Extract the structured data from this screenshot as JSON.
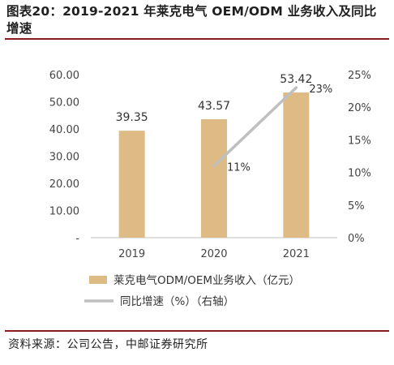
{
  "title": "图表20：2019-2021 年莱克电气 OEM/ODM 业务收入及同比增速",
  "source": "资料来源：公司公告，中邮证券研究所",
  "colors": {
    "bar": "#deba84",
    "line": "#bfbfbf",
    "rule": "#8a1c1c"
  },
  "chart_data": {
    "type": "bar",
    "categories": [
      "2019",
      "2020",
      "2021"
    ],
    "series": [
      {
        "name": "莱克电气ODM/OEM业务收入（亿元）",
        "type": "bar",
        "axis": "left",
        "values": [
          39.35,
          43.57,
          53.42
        ],
        "labels": [
          "39.35",
          "43.57",
          "53.42"
        ]
      },
      {
        "name": "同比增速（%）（右轴）",
        "type": "line",
        "axis": "right",
        "x": [
          "2020",
          "2021"
        ],
        "values": [
          11,
          23
        ],
        "labels": [
          "11%",
          "23%"
        ]
      }
    ],
    "y_left": {
      "ylim": [
        0,
        60
      ],
      "ticks": [
        0,
        10,
        20,
        30,
        40,
        50,
        60
      ],
      "tick_labels": [
        "-",
        "10.00",
        "20.00",
        "30.00",
        "40.00",
        "50.00",
        "60.00"
      ]
    },
    "y_right": {
      "ylim": [
        0,
        25
      ],
      "ticks": [
        0,
        5,
        10,
        15,
        20,
        25
      ],
      "tick_labels": [
        "0%",
        "5%",
        "10%",
        "15%",
        "20%",
        "25%"
      ]
    },
    "grid": false,
    "legend_position": "bottom"
  }
}
